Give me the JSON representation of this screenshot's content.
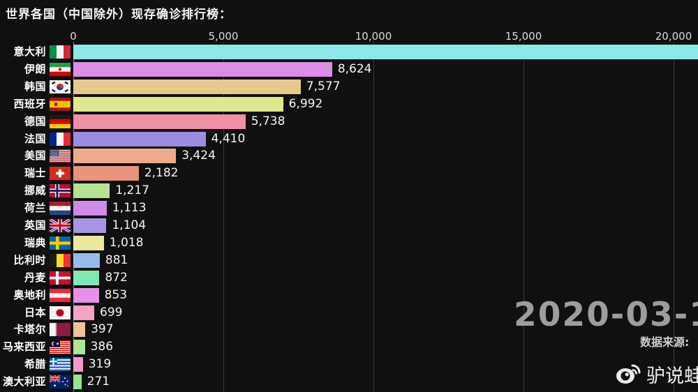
{
  "title": "世界各国（中国除外）现存确诊排行榜：",
  "axis": {
    "ticks": [
      {
        "label": "0",
        "value": 0
      },
      {
        "label": "5,000",
        "value": 5000
      },
      {
        "label": "10,000",
        "value": 10000
      },
      {
        "label": "15,000",
        "value": 15000
      },
      {
        "label": "20,000",
        "value": 20000
      }
    ]
  },
  "chart_data": {
    "type": "bar",
    "orientation": "horizontal",
    "title": "世界各国（中国除外）现存确诊排行榜：",
    "xlim": [
      0,
      20900
    ],
    "xticks": [
      "0",
      "5,000",
      "10,000",
      "15,000",
      "20,000"
    ],
    "grid": true,
    "legend": false,
    "categories": [
      "意大利",
      "伊朗",
      "韩国",
      "西班牙",
      "德国",
      "法国",
      "美国",
      "瑞士",
      "挪威",
      "荷兰",
      "英国",
      "瑞典",
      "比利时",
      "丹麦",
      "奥地利",
      "日本",
      "卡塔尔",
      "马来西亚",
      "希腊",
      "澳大利亚"
    ],
    "values": [
      20850,
      8624,
      7577,
      6992,
      5738,
      4410,
      3424,
      2182,
      1217,
      1113,
      1104,
      1018,
      881,
      872,
      853,
      699,
      397,
      386,
      319,
      271
    ],
    "value_labels": [
      "",
      "8,624",
      "7,577",
      "6,992",
      "5,738",
      "4,410",
      "3,424",
      "2,182",
      "1,217",
      "1,113",
      "1,104",
      "1,018",
      "881",
      "872",
      "853",
      "699",
      "397",
      "386",
      "319",
      "271"
    ],
    "flags": [
      "it",
      "ir",
      "kr",
      "es",
      "de",
      "fr",
      "us",
      "ch",
      "no",
      "nl",
      "gb",
      "se",
      "be",
      "dk",
      "at",
      "jp",
      "qa",
      "my",
      "gr",
      "au"
    ],
    "bar_colors": [
      "#8CE8E8",
      "#DC8CE8",
      "#E6C98B",
      "#DEE88C",
      "#F18FA5",
      "#9B8CE2",
      "#EFAB89",
      "#E9937D",
      "#B4E491",
      "#CF8BE9",
      "#A795E4",
      "#EDE79D",
      "#94BCEA",
      "#82E8B3",
      "#E690E9",
      "#F2A3C6",
      "#EFC19D",
      "#A9E78F",
      "#F09BD0",
      "#8FE98F"
    ],
    "note": "意大利 bar extends past the right edge of the frame; its value label is clipped off-screen (~20,850 estimated from scale)."
  },
  "overlay": {
    "date": "2020-03-1",
    "source_label": "数据来源:",
    "watermark": "驴说蛙"
  }
}
